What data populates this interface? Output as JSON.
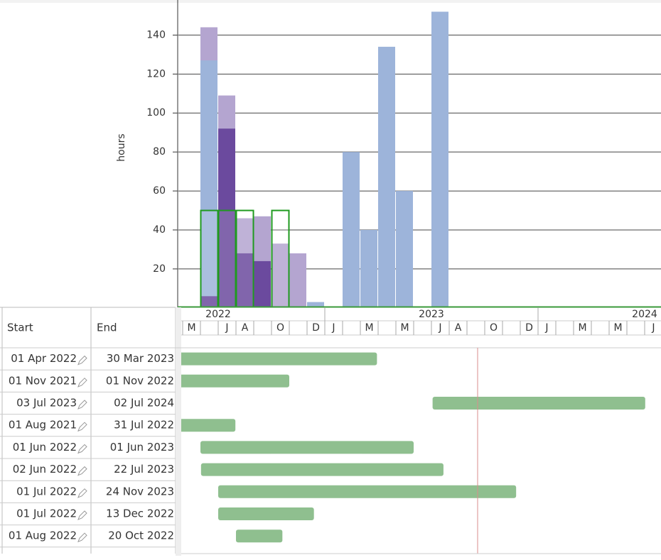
{
  "chart_data": {
    "type": "bar",
    "y_label": "hours",
    "ylim": [
      0,
      158
    ],
    "yticks": [
      20,
      40,
      60,
      80,
      100,
      120,
      140
    ],
    "grid": true,
    "years": [
      "2022",
      "2023",
      "2024"
    ],
    "categories": [
      "M",
      null,
      "J",
      "A",
      null,
      "O",
      null,
      "D",
      "J",
      null,
      "M",
      null,
      "M",
      null,
      "J",
      "A",
      null,
      "O",
      null,
      "D",
      "J",
      null,
      "M",
      null,
      "M",
      null,
      "J"
    ],
    "series": [
      {
        "color": "#b4a5d0",
        "values": [
          null,
          144,
          109,
          46,
          47,
          33,
          28,
          null,
          null,
          null,
          null,
          null,
          null,
          null,
          null,
          null,
          null,
          null,
          null,
          null,
          null,
          null,
          null,
          null,
          null,
          null,
          null
        ]
      },
      {
        "color": "#9db4da",
        "values": [
          null,
          127,
          null,
          null,
          null,
          null,
          null,
          3,
          null,
          80,
          40,
          134,
          60,
          null,
          152,
          null,
          null,
          null,
          null,
          null,
          null,
          null,
          null,
          null,
          null,
          null,
          null
        ]
      },
      {
        "color": "#6b4a9e",
        "values": [
          null,
          6,
          92,
          28,
          24,
          null,
          null,
          null,
          null,
          null,
          null,
          null,
          null,
          null,
          null,
          null,
          null,
          null,
          null,
          null,
          null,
          null,
          null,
          null,
          null,
          null,
          null
        ]
      },
      {
        "color": "#1f9a1f",
        "outline": true,
        "values": [
          null,
          50,
          50,
          50,
          null,
          50,
          null,
          null,
          null,
          null,
          null,
          null,
          null,
          null,
          null,
          null,
          null,
          null,
          null,
          null,
          null,
          null,
          null,
          null,
          null,
          null,
          null
        ]
      }
    ]
  },
  "table": {
    "columns": [
      "Start",
      "End"
    ],
    "bar_color": "#8fbf8f",
    "rows": [
      [
        "01 Apr 2022",
        "30 Mar 2023"
      ],
      [
        "01 Nov 2021",
        "01 Nov 2022"
      ],
      [
        "03 Jul 2023",
        "02 Jul 2024"
      ],
      [
        "01 Aug 2021",
        "31 Jul 2022"
      ],
      [
        "01 Jun 2022",
        "01 Jun 2023"
      ],
      [
        "02 Jun 2022",
        "22 Jul 2023"
      ],
      [
        "01 Jul 2022",
        "24 Nov 2023"
      ],
      [
        "01 Jul 2022",
        "13 Dec 2022"
      ],
      [
        "01 Aug 2022",
        "20 Oct 2022"
      ]
    ]
  }
}
